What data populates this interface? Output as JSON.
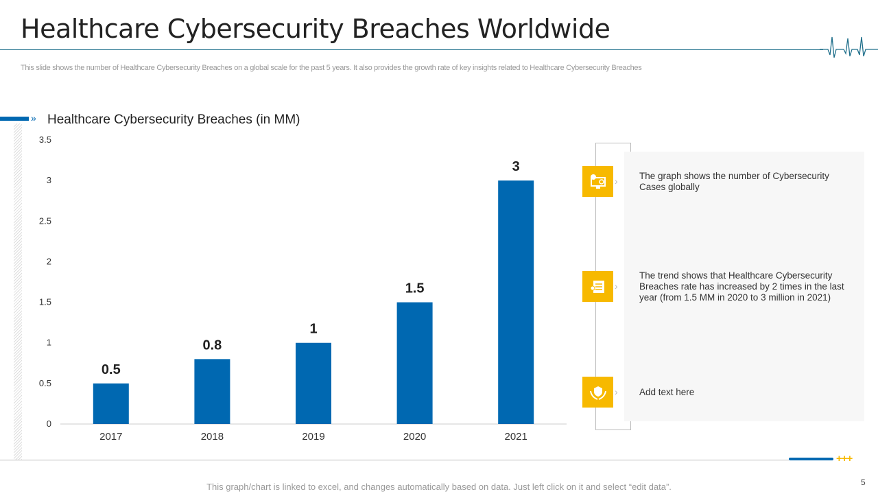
{
  "slide": {
    "title": "Healthcare Cybersecurity Breaches Worldwide",
    "subtitle": "This slide shows the number of Healthcare Cybersecurity Breaches on a global scale for the past 5 years. It also provides the growth rate of key insights related to Healthcare Cybersecurity Breaches",
    "footer_note": "This graph/chart is linked to excel,  and changes automatically based on data. Just left click on it and select “edit data”.",
    "page_number": "5",
    "plus_marks": "+++"
  },
  "colors": {
    "bar": "#0068b1",
    "accent": "#f7b900",
    "heading_line": "#1f6f8b"
  },
  "chart_data": {
    "type": "bar",
    "title": "Healthcare Cybersecurity Breaches (in MM)",
    "categories": [
      "2017",
      "2018",
      "2019",
      "2020",
      "2021"
    ],
    "values": [
      0.5,
      0.8,
      1,
      1.5,
      3
    ],
    "data_labels": [
      "0.5",
      "0.8",
      "1",
      "1.5",
      "3"
    ],
    "ylim": [
      0,
      3.5
    ],
    "yticks": [
      "0",
      "0.5",
      "1",
      "1.5",
      "2",
      "2.5",
      "3",
      "3.5"
    ],
    "grid": false,
    "legend": "none"
  },
  "insights": [
    {
      "icon": "computer-security-icon",
      "text": "The graph shows the number of Cybersecurity Cases globally"
    },
    {
      "icon": "document-certificate-icon",
      "text": "The trend shows that Healthcare Cybersecurity Breaches rate has increased by 2 times in the last year (from 1.5 MM in 2020 to 3 million in 2021)"
    },
    {
      "icon": "hands-shield-icon",
      "text": "Add text here"
    }
  ]
}
